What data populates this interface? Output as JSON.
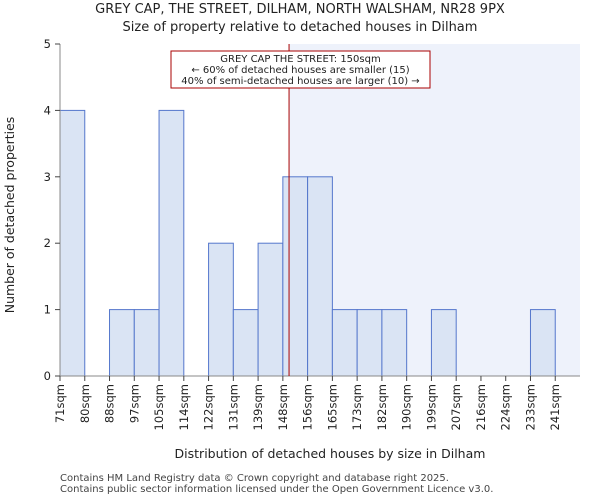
{
  "title_line1": "GREY CAP, THE STREET, DILHAM, NORTH WALSHAM, NR28 9PX",
  "title_line2": "Size of property relative to detached houses in Dilham",
  "footer_line1": "Contains HM Land Registry data © Crown copyright and database right 2025.",
  "footer_line2": "Contains public sector information licensed under the Open Government Licence v3.0.",
  "colors": {
    "bar_fill": "#dae4f4",
    "bar_stroke": "#5577cc",
    "marker_line": "#aa0000",
    "highlight_band": "#eef2fb",
    "annotation_border": "#aa0000"
  },
  "chart_data": {
    "type": "bar",
    "xlabel": "Distribution of detached houses by size in Dilham",
    "ylabel": "Number of detached properties",
    "ylim": [
      0,
      5
    ],
    "yticks": [
      0,
      1,
      2,
      3,
      4,
      5
    ],
    "categories": [
      "71sqm",
      "80sqm",
      "88sqm",
      "97sqm",
      "105sqm",
      "114sqm",
      "122sqm",
      "131sqm",
      "139sqm",
      "148sqm",
      "156sqm",
      "165sqm",
      "173sqm",
      "182sqm",
      "190sqm",
      "199sqm",
      "207sqm",
      "216sqm",
      "224sqm",
      "233sqm",
      "241sqm"
    ],
    "values": [
      4,
      0,
      1,
      1,
      4,
      0,
      2,
      1,
      2,
      3,
      3,
      1,
      1,
      1,
      0,
      1,
      0,
      0,
      0,
      1,
      0
    ],
    "marker_value": 150,
    "marker_bin_index": 9,
    "marker_bin_fraction": 0.25,
    "annotation": {
      "line1": "GREY CAP THE STREET: 150sqm",
      "line2": "← 60% of detached houses are smaller (15)",
      "line3": "40% of semi-detached houses are larger (10) →"
    },
    "grid": false
  }
}
